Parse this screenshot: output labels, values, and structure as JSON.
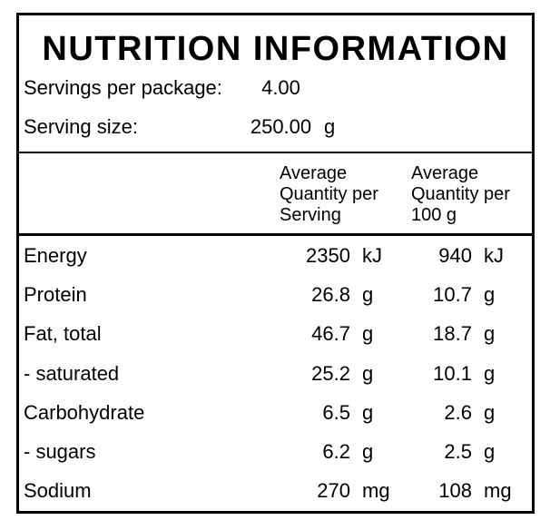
{
  "panel": {
    "title": "NUTRITION INFORMATION",
    "servings_per_package": {
      "label": "Servings per package:",
      "value": "4.00",
      "unit": ""
    },
    "serving_size": {
      "label": "Serving size:",
      "value": "250.00",
      "unit": "g"
    },
    "columns": {
      "per_serving": {
        "line1": "Average",
        "line2": "Quantity per",
        "line3": "Serving"
      },
      "per_100g": {
        "line1": "Average",
        "line2": "Quantity per",
        "line3": "100 g"
      }
    },
    "rows": [
      {
        "name": "Energy",
        "per_serving": "2350",
        "per_serving_unit": "kJ",
        "per_100g": "940",
        "per_100g_unit": "kJ"
      },
      {
        "name": "Protein",
        "per_serving": "26.8",
        "per_serving_unit": "g",
        "per_100g": "10.7",
        "per_100g_unit": "g"
      },
      {
        "name": "Fat, total",
        "per_serving": "46.7",
        "per_serving_unit": "g",
        "per_100g": "18.7",
        "per_100g_unit": "g"
      },
      {
        "name": "- saturated",
        "per_serving": "25.2",
        "per_serving_unit": "g",
        "per_100g": "10.1",
        "per_100g_unit": "g"
      },
      {
        "name": "Carbohydrate",
        "per_serving": "6.5",
        "per_serving_unit": "g",
        "per_100g": "2.6",
        "per_100g_unit": "g"
      },
      {
        "name": "- sugars",
        "per_serving": "6.2",
        "per_serving_unit": "g",
        "per_100g": "2.5",
        "per_100g_unit": "g"
      },
      {
        "name": "Sodium",
        "per_serving": "270",
        "per_serving_unit": "mg",
        "per_100g": "108",
        "per_100g_unit": "mg"
      }
    ],
    "colors": {
      "border": "#000000",
      "text": "#000000",
      "background": "#ffffff"
    }
  }
}
